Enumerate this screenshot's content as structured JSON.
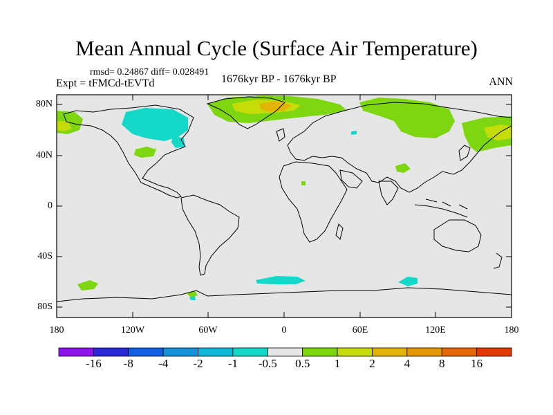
{
  "title": "Mean Annual Cycle (Surface Air Temperature)",
  "stats": "rmsd= 0.24867 diff= 0.028491",
  "experiment": "Expt = tFMCd-tEVTd",
  "period": "1676kyr BP - 1676kyr BP",
  "season": "ANN",
  "lat_labels": [
    "80N",
    "40N",
    "0",
    "40S",
    "80S"
  ],
  "lon_labels": [
    "180",
    "120W",
    "60W",
    "0",
    "60E",
    "120E",
    "180"
  ],
  "colorbar": {
    "labels": [
      "-16",
      "-8",
      "-4",
      "-2",
      "-1",
      "-0.5",
      "0.5",
      "1",
      "2",
      "4",
      "8",
      "16"
    ],
    "colors": [
      "#8a16e8",
      "#2a28d2",
      "#1560e0",
      "#1891d8",
      "#10b8d8",
      "#14d8c8",
      "#e6e6e6",
      "#7ed610",
      "#c6dc08",
      "#e2b408",
      "#e2980a",
      "#e2660a",
      "#e0380a"
    ]
  },
  "colors": {
    "background": "#e6e6e6",
    "neutral": "#e6e6e6",
    "warm_small": "#7ed610",
    "warm_mid": "#c6dc08",
    "warm_high": "#e2b408",
    "cool_small": "#14d8c8"
  }
}
